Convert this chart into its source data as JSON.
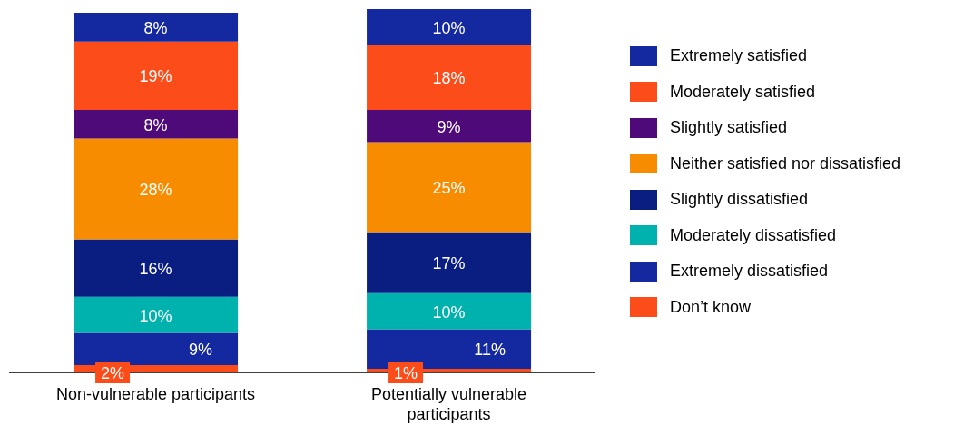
{
  "chart_data": {
    "type": "bar",
    "stacked": true,
    "legend": "right",
    "categories": [
      "Non-vulnerable participants",
      "Potentially vulnerable participants"
    ],
    "series": [
      {
        "name": "Don’t know",
        "color": "#fc4c1a",
        "values": [
          2,
          1
        ],
        "value_labels": [
          "2%",
          "1%"
        ]
      },
      {
        "name": "Extremely dissatisfied",
        "color": "#1428a0",
        "values": [
          9,
          11
        ],
        "value_labels": [
          "9%",
          "11%"
        ]
      },
      {
        "name": "Moderately dissatisfied",
        "color": "#00b2ad",
        "values": [
          10,
          10
        ],
        "value_labels": [
          "10%",
          "10%"
        ]
      },
      {
        "name": "Slightly dissatisfied",
        "color": "#0a1e82",
        "values": [
          16,
          17
        ],
        "value_labels": [
          "16%",
          "17%"
        ]
      },
      {
        "name": "Neither satisfied nor dissatisfied",
        "color": "#f78c00",
        "values": [
          28,
          25
        ],
        "value_labels": [
          "28%",
          "25%"
        ]
      },
      {
        "name": "Slightly satisfied",
        "color": "#4e0a78",
        "values": [
          8,
          9
        ],
        "value_labels": [
          "8%",
          "9%"
        ]
      },
      {
        "name": "Moderately satisfied",
        "color": "#fc4c1a",
        "values": [
          19,
          18
        ],
        "value_labels": [
          "19%",
          "18%"
        ]
      },
      {
        "name": "Extremely satisfied",
        "color": "#1428a0",
        "values": [
          8,
          10
        ],
        "value_labels": [
          "8%",
          "10%"
        ]
      }
    ]
  }
}
